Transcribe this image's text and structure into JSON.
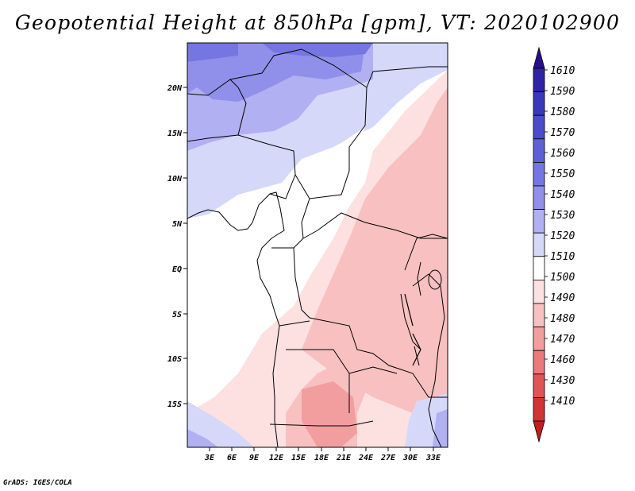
{
  "title": "Geopotential Height at 850hPa [gpm], VT: 2020102900",
  "footer": "GrADS: IGES/COLA",
  "map": {
    "lat_labels": [
      "20N",
      "15N",
      "10N",
      "5N",
      "EQ",
      "5S",
      "10S",
      "15S"
    ],
    "lon_labels": [
      "3E",
      "6E",
      "9E",
      "12E",
      "15E",
      "18E",
      "21E",
      "24E",
      "27E",
      "30E",
      "33E"
    ]
  },
  "colorbar": {
    "levels": [
      {
        "label": "1610",
        "color": "#2a0e8c"
      },
      {
        "label": "1590",
        "color": "#2e22a6"
      },
      {
        "label": "1580",
        "color": "#3838bc"
      },
      {
        "label": "1570",
        "color": "#4a4ccc"
      },
      {
        "label": "1560",
        "color": "#5e60d8"
      },
      {
        "label": "1550",
        "color": "#7676e2"
      },
      {
        "label": "1540",
        "color": "#9090ea"
      },
      {
        "label": "1530",
        "color": "#b0b0f2"
      },
      {
        "label": "1520",
        "color": "#d6d8fa"
      },
      {
        "label": "1510",
        "color": "#ffffff"
      },
      {
        "label": "1500",
        "color": "#fde0e0"
      },
      {
        "label": "1490",
        "color": "#f8c0c0"
      },
      {
        "label": "1480",
        "color": "#f29e9e"
      },
      {
        "label": "1470",
        "color": "#ec7a7a"
      },
      {
        "label": "1460",
        "color": "#e05454"
      },
      {
        "label": "1430",
        "color": "#d23434"
      },
      {
        "label": "1410",
        "color": "#bc2020"
      }
    ]
  }
}
